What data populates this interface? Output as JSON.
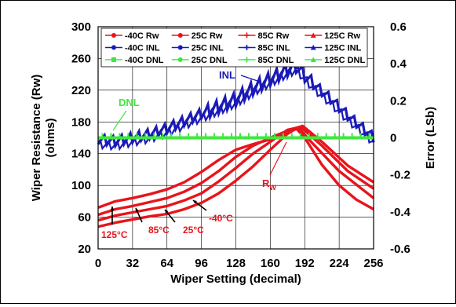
{
  "chart_data": {
    "type": "line",
    "xlabel": "Wiper Setting (decimal)",
    "ylabel": "Wiper Resistance (Rw) (ohms)",
    "ylabel_lines": [
      "Wiper Resistance (Rw)",
      "(ohms)"
    ],
    "y2label": "Error (LSb)",
    "xlim": [
      0,
      256
    ],
    "ylim": [
      20,
      300
    ],
    "y2lim": [
      -0.6,
      0.6
    ],
    "x_ticks": [
      "0",
      "32",
      "64",
      "96",
      "128",
      "160",
      "192",
      "224",
      "256"
    ],
    "y_ticks": [
      "20",
      "60",
      "100",
      "140",
      "180",
      "220",
      "260",
      "300"
    ],
    "y2_ticks": [
      "-0.6",
      "-0.4",
      "-0.2",
      "0",
      "0.2",
      "0.4",
      "0.6"
    ],
    "grid": true,
    "legend_position": "top",
    "legend": [
      {
        "label": "-40C Rw",
        "color": "#e8141c",
        "marker": "circle"
      },
      {
        "label": "25C Rw",
        "color": "#e8141c",
        "marker": "circle"
      },
      {
        "label": "85C Rw",
        "color": "#e8141c",
        "marker": "plus"
      },
      {
        "label": "125C Rw",
        "color": "#e8141c",
        "marker": "triangle"
      },
      {
        "label": "-40C INL",
        "color": "#1a1ab8",
        "marker": "circle"
      },
      {
        "label": "25C INL",
        "color": "#1a1ab8",
        "marker": "circle"
      },
      {
        "label": "85C INL",
        "color": "#1a1ab8",
        "marker": "plus"
      },
      {
        "label": "125C INL",
        "color": "#1a1ab8",
        "marker": "triangle"
      },
      {
        "label": "-40C DNL",
        "color": "#3ee83e",
        "marker": "square"
      },
      {
        "label": "25C DNL",
        "color": "#3ee83e",
        "marker": "circle"
      },
      {
        "label": "85C DNL",
        "color": "#3ee83e",
        "marker": "plus"
      },
      {
        "label": "125C DNL",
        "color": "#3ee83e",
        "marker": "triangle"
      }
    ],
    "series": [
      {
        "name": "-40C Rw",
        "axis": "left",
        "color": "#e8141c",
        "x": [
          0,
          16,
          32,
          48,
          64,
          80,
          96,
          112,
          128,
          144,
          160,
          176,
          184,
          192,
          208,
          224,
          240,
          256
        ],
        "y": [
          48,
          53,
          57,
          61,
          64,
          70,
          78,
          90,
          106,
          124,
          145,
          165,
          172,
          160,
          126,
          100,
          82,
          70
        ]
      },
      {
        "name": "25C Rw",
        "axis": "left",
        "color": "#e8141c",
        "x": [
          0,
          16,
          32,
          48,
          64,
          80,
          96,
          112,
          128,
          144,
          160,
          176,
          186,
          200,
          224,
          256
        ],
        "y": [
          56,
          62,
          66,
          70,
          74,
          81,
          90,
          105,
          122,
          140,
          155,
          170,
          173,
          152,
          118,
          84
        ]
      },
      {
        "name": "85C Rw",
        "axis": "left",
        "color": "#e8141c",
        "x": [
          0,
          16,
          32,
          48,
          64,
          80,
          96,
          112,
          128,
          144,
          160,
          178,
          188,
          208,
          232,
          256
        ],
        "y": [
          63,
          70,
          74,
          79,
          84,
          92,
          103,
          118,
          136,
          150,
          160,
          170,
          174,
          150,
          118,
          96
        ]
      },
      {
        "name": "125C Rw",
        "axis": "left",
        "color": "#e8141c",
        "x": [
          0,
          16,
          32,
          48,
          64,
          80,
          96,
          112,
          128,
          144,
          160,
          176,
          190,
          208,
          232,
          256
        ],
        "y": [
          72,
          80,
          84,
          89,
          95,
          104,
          117,
          132,
          145,
          152,
          158,
          166,
          175,
          155,
          125,
          104
        ]
      },
      {
        "name": "INL",
        "axis": "right",
        "color": "#1a1ab8",
        "x": [
          0,
          16,
          32,
          48,
          64,
          80,
          96,
          112,
          128,
          144,
          160,
          176,
          184,
          200,
          216,
          232,
          248,
          256
        ],
        "y": [
          0.0,
          -0.01,
          0.01,
          0.03,
          0.06,
          0.1,
          0.14,
          0.18,
          0.22,
          0.28,
          0.33,
          0.38,
          0.4,
          0.3,
          0.22,
          0.13,
          0.05,
          0.01
        ]
      },
      {
        "name": "DNL",
        "axis": "right",
        "color": "#3ee83e",
        "x": [
          0,
          256
        ],
        "y": [
          0.0,
          0.0
        ]
      }
    ],
    "annotations": [
      "INL",
      "DNL",
      "R",
      "W",
      "125°C",
      "85°C",
      "25°C",
      "-40°C"
    ]
  }
}
